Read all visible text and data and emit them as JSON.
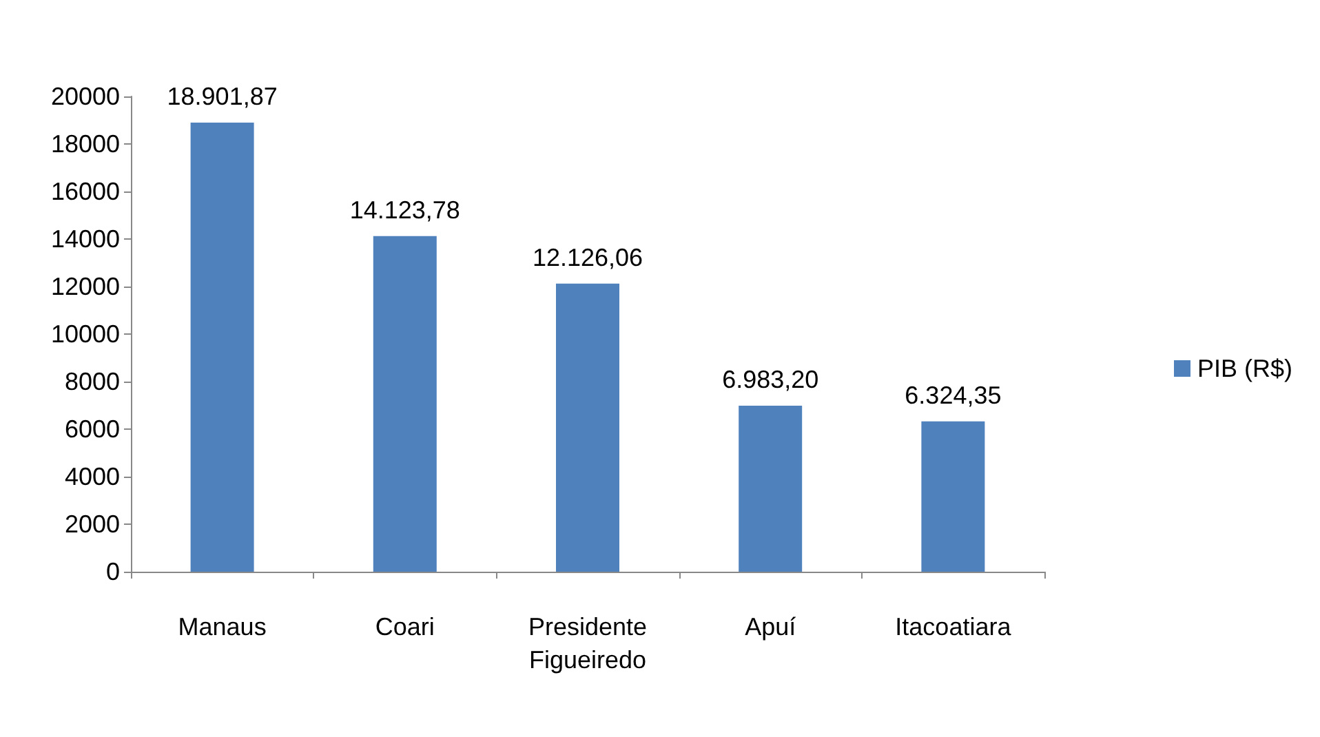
{
  "chart_data": {
    "type": "bar",
    "categories": [
      "Manaus",
      "Coari",
      "Presidente\nFigueiredo",
      "Apuí",
      "Itacoatiara"
    ],
    "series": [
      {
        "name": "PIB (R$)",
        "color": "#4f81bd",
        "values": [
          18901.87,
          14123.78,
          12126.06,
          6983.2,
          6324.35
        ],
        "value_labels": [
          "18.901,87",
          "14.123,78",
          "12.126,06",
          "6.983,20",
          "6.324,35"
        ]
      }
    ],
    "ylim": [
      0,
      20000
    ],
    "yticks": [
      0,
      2000,
      4000,
      6000,
      8000,
      10000,
      12000,
      14000,
      16000,
      18000,
      20000
    ],
    "grid": false,
    "legend": "right"
  }
}
